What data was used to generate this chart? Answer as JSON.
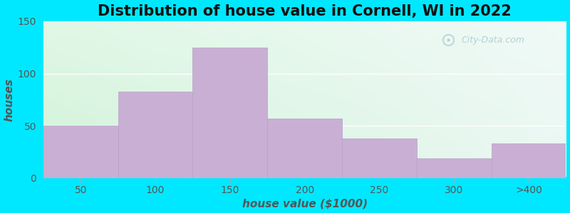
{
  "title": "Distribution of house value in Cornell, WI in 2022",
  "xlabel": "house value ($1000)",
  "ylabel": "houses",
  "bar_labels": [
    "50",
    "100",
    "150",
    "200",
    "250",
    "300",
    ">400"
  ],
  "bar_values": [
    50,
    83,
    125,
    57,
    38,
    19,
    33
  ],
  "bar_color": "#c9afd4",
  "bar_edge_color": "#b8a0c8",
  "ylim": [
    0,
    150
  ],
  "yticks": [
    0,
    50,
    100,
    150
  ],
  "bg_color_left": "#d6f0d8",
  "bg_color_right": "#eaf5f0",
  "bg_color_top": "#f0f8f5",
  "outer_bg_color": "#00e8ff",
  "title_fontsize": 15,
  "axis_label_fontsize": 11,
  "tick_fontsize": 10,
  "watermark_text": "City-Data.com"
}
